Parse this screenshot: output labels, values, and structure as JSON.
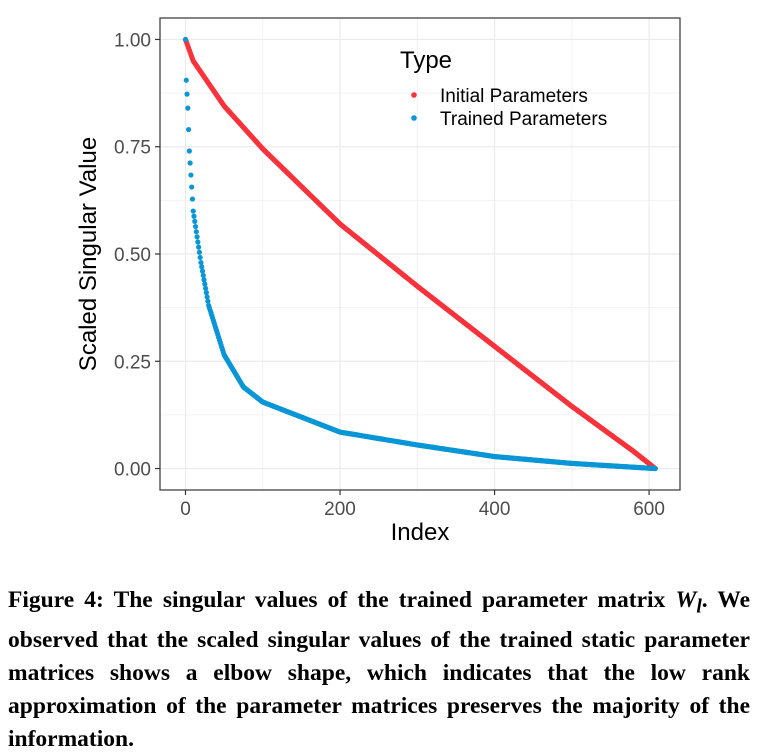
{
  "chart_data": {
    "type": "scatter",
    "title": "",
    "xlabel": "Index",
    "ylabel": "Scaled Singular Value",
    "xlim": [
      -33,
      640
    ],
    "ylim": [
      -0.05,
      1.05
    ],
    "x_ticks": [
      0,
      200,
      400,
      600
    ],
    "y_ticks": [
      0.0,
      0.25,
      0.5,
      0.75,
      1.0
    ],
    "x_tick_labels": [
      "0",
      "200",
      "400",
      "600"
    ],
    "y_tick_labels": [
      "0.00",
      "0.25",
      "0.50",
      "0.75",
      "1.00"
    ],
    "grid": true,
    "legend": {
      "title": "Type",
      "placement": "top-right"
    },
    "series": [
      {
        "name": "Initial Parameters",
        "color": "#F8333C",
        "n_points": 609,
        "anchor_points": [
          [
            0,
            1.0
          ],
          [
            10,
            0.95
          ],
          [
            50,
            0.845
          ],
          [
            100,
            0.745
          ],
          [
            200,
            0.57
          ],
          [
            300,
            0.425
          ],
          [
            400,
            0.285
          ],
          [
            500,
            0.145
          ],
          [
            580,
            0.04
          ],
          [
            608,
            0.0
          ]
        ]
      },
      {
        "name": "Trained Parameters",
        "color": "#0A96D6",
        "n_points": 609,
        "anchor_points": [
          [
            0,
            1.0
          ],
          [
            1,
            0.905
          ],
          [
            3,
            0.84
          ],
          [
            5,
            0.74
          ],
          [
            10,
            0.6
          ],
          [
            20,
            0.48
          ],
          [
            30,
            0.38
          ],
          [
            50,
            0.265
          ],
          [
            75,
            0.19
          ],
          [
            100,
            0.155
          ],
          [
            150,
            0.12
          ],
          [
            200,
            0.085
          ],
          [
            300,
            0.055
          ],
          [
            400,
            0.028
          ],
          [
            500,
            0.012
          ],
          [
            608,
            0.0
          ]
        ]
      }
    ]
  },
  "caption": {
    "label": "Figure 4:",
    "text_before": "The singular values of the trained parameter matrix",
    "math": "W",
    "math_sub": "l",
    "text_after": ". We observed that the scaled singular values of the trained static parameter matrices shows a elbow shape, which indicates that the low rank approximation of the parameter matrices preserves the majority of the information."
  }
}
